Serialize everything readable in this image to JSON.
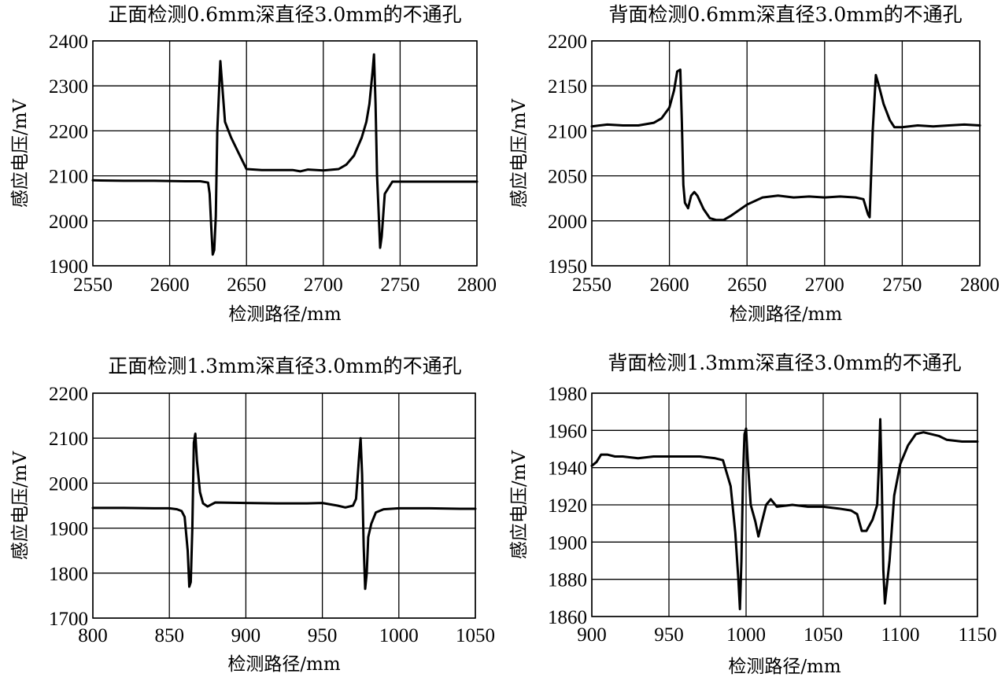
{
  "chart_data": [
    {
      "type": "line",
      "title": "正面检测0.6mm深直径3.0mm的不通孔",
      "xlabel": "检测路径/mm",
      "ylabel": "感应电压/mV",
      "xlim": [
        2550,
        2800
      ],
      "ylim": [
        1900,
        2400
      ],
      "xticks": [
        "2550",
        "2600",
        "2650",
        "2700",
        "2750",
        "2800"
      ],
      "yticks": [
        "1900",
        "2000",
        "2100",
        "2200",
        "2300",
        "2400"
      ],
      "grid": true,
      "series": [
        {
          "x": [
            2550,
            2570,
            2590,
            2610,
            2620,
            2625,
            2626,
            2627,
            2628,
            2629,
            2630,
            2631,
            2633,
            2636,
            2640,
            2645,
            2650,
            2660,
            2670,
            2680,
            2685,
            2690,
            2700,
            2710,
            2715,
            2720,
            2725,
            2728,
            2730,
            2732,
            2733,
            2734,
            2735,
            2736,
            2737,
            2738,
            2740,
            2745,
            2760,
            2780,
            2800
          ],
          "y": [
            2090,
            2089,
            2089,
            2088,
            2088,
            2085,
            2060,
            1990,
            1925,
            1935,
            2010,
            2200,
            2355,
            2220,
            2185,
            2150,
            2115,
            2113,
            2113,
            2113,
            2110,
            2114,
            2112,
            2115,
            2125,
            2145,
            2185,
            2220,
            2260,
            2330,
            2370,
            2260,
            2100,
            2020,
            1940,
            1965,
            2060,
            2087,
            2087,
            2087,
            2087
          ]
        }
      ]
    },
    {
      "type": "line",
      "title": "背面检测0.6mm深直径3.0mm的不通孔",
      "xlabel": "检测路径/mm",
      "ylabel": "感应电压/mV",
      "xlim": [
        2550,
        2800
      ],
      "ylim": [
        1950,
        2200
      ],
      "xticks": [
        "2550",
        "2600",
        "2650",
        "2700",
        "2750",
        "2800"
      ],
      "yticks": [
        "1950",
        "2000",
        "2050",
        "2100",
        "2150",
        "2200"
      ],
      "grid": true,
      "series": [
        {
          "x": [
            2550,
            2560,
            2570,
            2580,
            2590,
            2595,
            2600,
            2603,
            2605,
            2607,
            2608,
            2609,
            2610,
            2612,
            2614,
            2616,
            2618,
            2622,
            2626,
            2630,
            2635,
            2640,
            2650,
            2660,
            2670,
            2680,
            2690,
            2700,
            2710,
            2720,
            2725,
            2728,
            2729,
            2731,
            2733,
            2735,
            2738,
            2742,
            2745,
            2750,
            2760,
            2770,
            2780,
            2790,
            2800
          ],
          "y": [
            2105,
            2107,
            2106,
            2106,
            2109,
            2114,
            2126,
            2145,
            2166,
            2168,
            2110,
            2040,
            2020,
            2014,
            2028,
            2032,
            2028,
            2013,
            2003,
            2001,
            2001,
            2006,
            2018,
            2026,
            2028,
            2026,
            2027,
            2026,
            2027,
            2026,
            2024,
            2007,
            2004,
            2100,
            2162,
            2150,
            2130,
            2112,
            2104,
            2104,
            2106,
            2105,
            2106,
            2107,
            2106
          ]
        }
      ]
    },
    {
      "type": "line",
      "title": "正面检测1.3mm深直径3.0mm的不通孔",
      "xlabel": "检测路径/mm",
      "ylabel": "感应电压/mV",
      "xlim": [
        800,
        1050
      ],
      "ylim": [
        1700,
        2200
      ],
      "xticks": [
        "800",
        "850",
        "900",
        "950",
        "1000",
        "1050"
      ],
      "yticks": [
        "1700",
        "1800",
        "1900",
        "2000",
        "2100",
        "2200"
      ],
      "grid": true,
      "series": [
        {
          "x": [
            800,
            820,
            840,
            850,
            855,
            858,
            860,
            862,
            863,
            864,
            865,
            866,
            867,
            868,
            870,
            872,
            875,
            880,
            900,
            920,
            940,
            950,
            960,
            965,
            970,
            972,
            973,
            974,
            975,
            976,
            977,
            978,
            979,
            980,
            982,
            985,
            990,
            1000,
            1020,
            1040,
            1050
          ],
          "y": [
            1945,
            1945,
            1944,
            1944,
            1942,
            1938,
            1925,
            1850,
            1770,
            1780,
            1900,
            2090,
            2110,
            2050,
            1980,
            1955,
            1948,
            1957,
            1956,
            1955,
            1955,
            1956,
            1950,
            1946,
            1950,
            1965,
            2010,
            2060,
            2100,
            2020,
            1860,
            1765,
            1800,
            1880,
            1910,
            1935,
            1942,
            1944,
            1944,
            1943,
            1943
          ]
        }
      ]
    },
    {
      "type": "line",
      "title": "背面检测1.3mm深直径3.0mm的不通孔",
      "xlabel": "检测路径/mm",
      "ylabel": "感应电压/mV",
      "xlim": [
        900,
        1150
      ],
      "ylim": [
        1860,
        1980
      ],
      "xticks": [
        "900",
        "950",
        "1000",
        "1050",
        "1100",
        "1150"
      ],
      "yticks": [
        "1860",
        "1880",
        "1900",
        "1920",
        "1940",
        "1960",
        "1980"
      ],
      "grid": true,
      "series": [
        {
          "x": [
            900,
            903,
            906,
            910,
            915,
            920,
            930,
            940,
            950,
            960,
            970,
            980,
            985,
            990,
            993,
            995,
            996,
            997,
            998,
            999,
            1000,
            1001,
            1003,
            1006,
            1008,
            1010,
            1013,
            1016,
            1020,
            1030,
            1040,
            1050,
            1060,
            1068,
            1072,
            1075,
            1078,
            1082,
            1085,
            1086,
            1087,
            1088,
            1089,
            1090,
            1093,
            1096,
            1100,
            1105,
            1110,
            1115,
            1120,
            1125,
            1130,
            1140,
            1150
          ],
          "y": [
            1941,
            1943,
            1947,
            1947,
            1946,
            1946,
            1945,
            1946,
            1946,
            1946,
            1946,
            1945,
            1944,
            1930,
            1905,
            1880,
            1864,
            1890,
            1935,
            1958,
            1961,
            1945,
            1920,
            1911,
            1903,
            1910,
            1920,
            1923,
            1919,
            1920,
            1919,
            1919,
            1918,
            1917,
            1915,
            1906,
            1906,
            1912,
            1920,
            1940,
            1966,
            1930,
            1885,
            1867,
            1890,
            1925,
            1942,
            1952,
            1958,
            1959,
            1958,
            1957,
            1955,
            1954,
            1954
          ]
        }
      ]
    }
  ]
}
